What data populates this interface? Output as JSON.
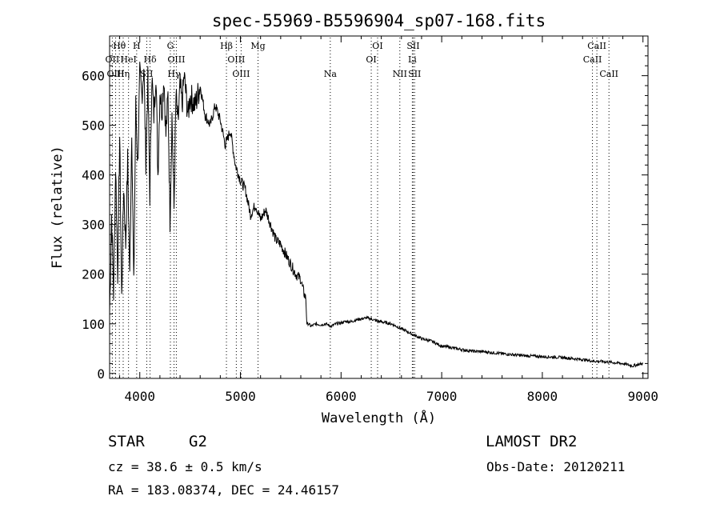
{
  "chart_data": {
    "type": "line",
    "title": "spec-55969-B5596904_sp07-168.fits",
    "xlabel": "Wavelength (Å)",
    "ylabel": "Flux (relative)",
    "xlim": [
      3700,
      9050
    ],
    "ylim": [
      -10,
      680
    ],
    "x_ticks": [
      4000,
      5000,
      6000,
      7000,
      8000,
      9000
    ],
    "y_ticks": [
      0,
      100,
      200,
      300,
      400,
      500,
      600
    ],
    "series": [
      {
        "name": "flux",
        "x": [
          3700,
          3720,
          3740,
          3760,
          3780,
          3800,
          3820,
          3840,
          3860,
          3880,
          3900,
          3920,
          3940,
          3960,
          3980,
          4000,
          4020,
          4040,
          4060,
          4080,
          4100,
          4120,
          4140,
          4160,
          4180,
          4200,
          4220,
          4240,
          4260,
          4280,
          4300,
          4320,
          4340,
          4360,
          4380,
          4400,
          4420,
          4440,
          4460,
          4480,
          4500,
          4550,
          4600,
          4650,
          4700,
          4750,
          4800,
          4850,
          4900,
          4950,
          5000,
          5050,
          5100,
          5150,
          5200,
          5250,
          5300,
          5350,
          5400,
          5450,
          5500,
          5550,
          5600,
          5620,
          5650,
          5660,
          5680,
          5700,
          5750,
          5800,
          5850,
          5900,
          5950,
          6000,
          6050,
          6100,
          6150,
          6200,
          6250,
          6300,
          6350,
          6400,
          6450,
          6500,
          6550,
          6600,
          6650,
          6700,
          6800,
          6900,
          7000,
          7100,
          7200,
          7300,
          7400,
          7500,
          7600,
          7700,
          7800,
          7900,
          8000,
          8100,
          8200,
          8300,
          8400,
          8500,
          8600,
          8700,
          8800,
          8900,
          8950,
          9000
        ],
        "y": [
          120,
          320,
          160,
          420,
          200,
          480,
          150,
          380,
          260,
          430,
          190,
          500,
          170,
          540,
          420,
          600,
          560,
          620,
          430,
          590,
          360,
          600,
          520,
          610,
          400,
          570,
          530,
          600,
          480,
          560,
          310,
          520,
          330,
          560,
          500,
          580,
          540,
          600,
          560,
          520,
          560,
          540,
          580,
          520,
          500,
          540,
          510,
          460,
          490,
          420,
          390,
          370,
          320,
          340,
          310,
          330,
          300,
          270,
          260,
          240,
          220,
          200,
          190,
          170,
          150,
          100,
          100,
          95,
          100,
          98,
          100,
          95,
          100,
          102,
          105,
          104,
          108,
          110,
          112,
          110,
          106,
          104,
          102,
          100,
          95,
          90,
          85,
          80,
          70,
          65,
          55,
          52,
          48,
          45,
          44,
          42,
          40,
          38,
          36,
          35,
          34,
          33,
          32,
          30,
          28,
          25,
          24,
          22,
          20,
          15,
          18,
          20
        ]
      }
    ],
    "lines": [
      {
        "label": "Hθ",
        "x": 3797,
        "row": 0
      },
      {
        "label": "OII",
        "x": 3727,
        "row": 1
      },
      {
        "label": "OIII",
        "x": 3760,
        "row": 2
      },
      {
        "label": "Hη",
        "x": 3835,
        "row": 2
      },
      {
        "label": "HeI",
        "x": 3888,
        "row": 1
      },
      {
        "label": "H",
        "x": 3969,
        "row": 0
      },
      {
        "label": "Hδ",
        "x": 4102,
        "row": 1
      },
      {
        "label": "SII",
        "x": 4069,
        "row": 2
      },
      {
        "label": "G",
        "x": 4304,
        "row": 0
      },
      {
        "label": "OIII",
        "x": 4363,
        "row": 1
      },
      {
        "label": "Hγ",
        "x": 4340,
        "row": 2
      },
      {
        "label": "Hβ",
        "x": 4861,
        "row": 0
      },
      {
        "label": "OIII",
        "x": 4959,
        "row": 1
      },
      {
        "label": "OIII",
        "x": 5007,
        "row": 2
      },
      {
        "label": "Mg",
        "x": 5175,
        "row": 0
      },
      {
        "label": "Na",
        "x": 5893,
        "row": 2
      },
      {
        "label": "OI",
        "x": 6300,
        "row": 1
      },
      {
        "label": "OI",
        "x": 6363,
        "row": 0
      },
      {
        "label": "NII",
        "x": 6584,
        "row": 2
      },
      {
        "label": "SII",
        "x": 6717,
        "row": 0
      },
      {
        "label": "Li",
        "x": 6708,
        "row": 1
      },
      {
        "label": "SII",
        "x": 6731,
        "row": 2
      },
      {
        "label": "CaII",
        "x": 8498,
        "row": 1
      },
      {
        "label": "CaII",
        "x": 8542,
        "row": 0
      },
      {
        "label": "CaII",
        "x": 8662,
        "row": 2
      }
    ]
  },
  "info": {
    "object_class": "STAR",
    "subclass": "G2",
    "cz": "cz = 38.6 ± 0.5 km/s",
    "coords": "RA = 183.08374, DEC =  24.46157",
    "survey": "LAMOST  DR2",
    "obs_date": "Obs-Date: 20120211"
  }
}
